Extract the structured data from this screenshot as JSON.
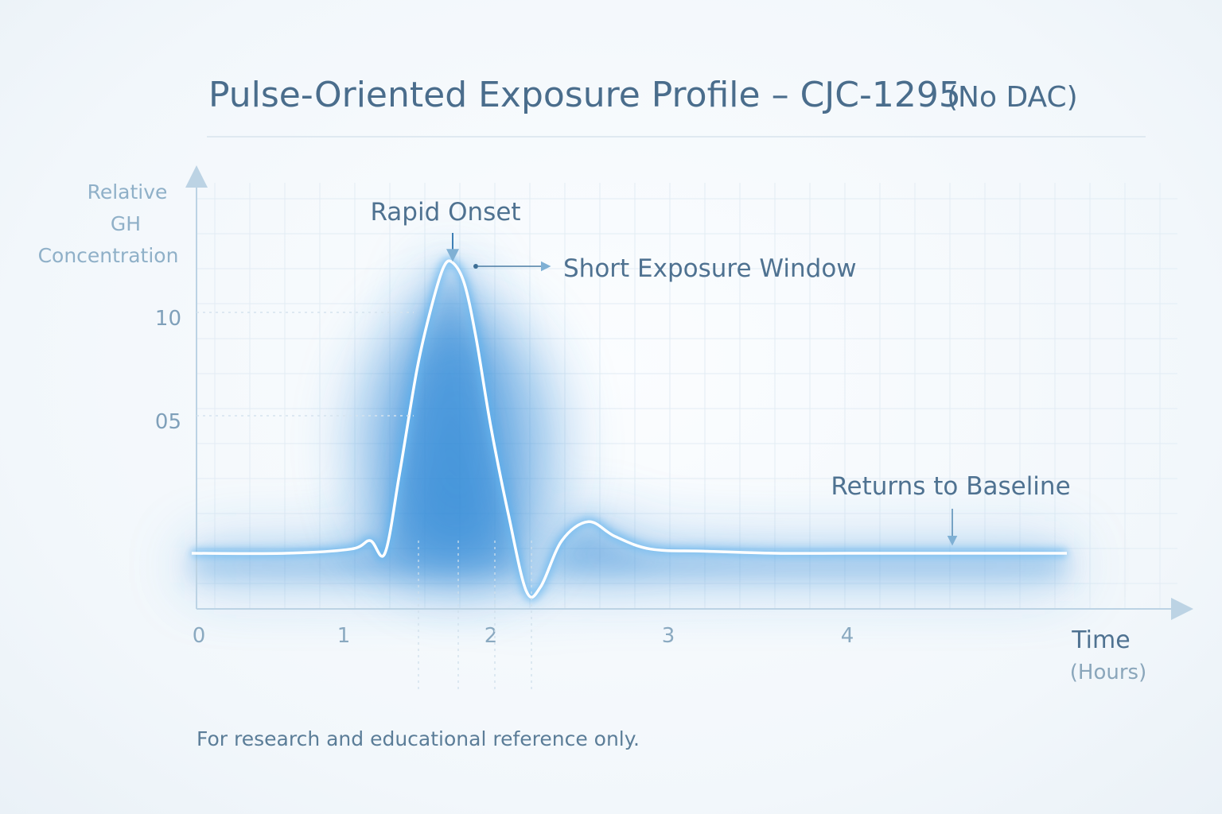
{
  "chart_data": {
    "type": "line",
    "title": "Pulse-Oriented Exposure Profile – CJC-1295",
    "subtitle": "(No DAC)",
    "ylabel_lines": [
      "Relative",
      "GH",
      "Concentration"
    ],
    "xlabel": "Time",
    "xlabel_unit": "(Hours)",
    "y_ticks": [
      {
        "value": 1.0,
        "label": "10"
      },
      {
        "value": 0.5,
        "label": "05"
      }
    ],
    "x_ticks": [
      {
        "value": 0,
        "label": "0"
      },
      {
        "value": 1,
        "label": "1"
      },
      {
        "value": 2,
        "label": "2"
      },
      {
        "value": 3,
        "label": "3"
      },
      {
        "value": 4,
        "label": "4"
      }
    ],
    "xlim": [
      0,
      5.2
    ],
    "ylim": [
      -0.27,
      1.48
    ],
    "grid": true,
    "baseline": 0,
    "series": [
      {
        "x": [
          -0.05,
          0.6,
          1.05,
          1.18,
          1.28,
          1.38,
          1.5,
          1.6,
          1.68,
          1.74,
          1.82,
          1.9,
          2.0,
          2.1,
          2.2,
          2.28,
          2.4,
          2.55,
          2.7,
          2.9,
          3.2,
          3.6,
          4.0,
          4.6,
          5.2
        ],
        "y": [
          0.0,
          0.0,
          0.02,
          0.06,
          0.0,
          0.38,
          0.88,
          1.18,
          1.36,
          1.38,
          1.28,
          1.02,
          0.6,
          0.18,
          -0.18,
          -0.16,
          0.06,
          0.15,
          0.08,
          0.02,
          0.01,
          0.0,
          0.0,
          0.0,
          0.0
        ]
      }
    ],
    "annotations": [
      {
        "text": "Rapid Onset",
        "x": 1.74,
        "y": 1.38,
        "arrow": "down"
      },
      {
        "text": "Short Exposure Window",
        "x": 1.86,
        "y": 1.4,
        "arrow": "right"
      },
      {
        "text": "Returns to Baseline",
        "x": 4.6,
        "y": 0.02,
        "arrow": "down"
      }
    ],
    "colors": {
      "line": "#ffffff",
      "glow": "#2b86d6",
      "axis": "#bcd3e4",
      "grid": "#e2ecf4"
    }
  },
  "footnote": "For research and educational reference only."
}
